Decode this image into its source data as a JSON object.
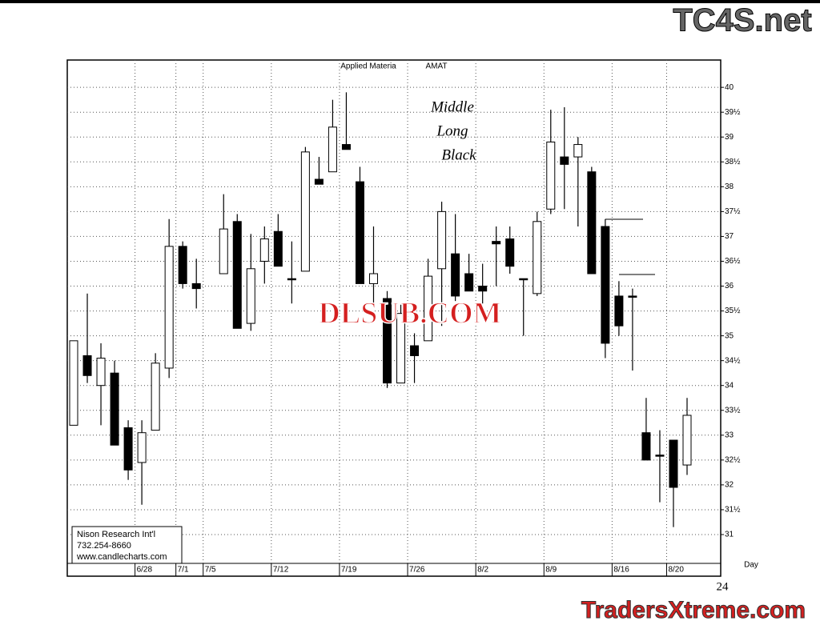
{
  "chart_data": {
    "type": "candlestick",
    "title": "Applied Materia",
    "subtitle": "AMAT",
    "x_label": "Day",
    "annotations": [
      "Middle",
      "Long",
      "Black"
    ],
    "categories": [
      null,
      null,
      null,
      null,
      null,
      "6/28",
      null,
      null,
      "7/1",
      null,
      "7/5",
      null,
      null,
      null,
      null,
      "7/12",
      null,
      null,
      null,
      null,
      "7/19",
      null,
      null,
      null,
      null,
      "7/26",
      null,
      null,
      null,
      null,
      "8/2",
      null,
      null,
      null,
      null,
      "8/9",
      null,
      null,
      null,
      null,
      "8/16",
      null,
      null,
      null,
      "8/20",
      null
    ],
    "open": [
      33.2,
      34.6,
      34.0,
      34.25,
      33.15,
      32.45,
      33.1,
      34.35,
      36.8,
      36.05,
      null,
      36.25,
      37.3,
      35.25,
      36.5,
      37.1,
      36.15,
      36.3,
      38.15,
      38.3,
      38.85,
      38.1,
      36.05,
      35.75,
      34.05,
      34.8,
      34.9,
      36.35,
      36.65,
      36.25,
      36.0,
      36.9,
      36.95,
      36.15,
      35.85,
      37.55,
      38.6,
      38.6,
      38.3,
      37.2,
      35.8,
      35.8,
      33.05,
      32.6,
      32.9,
      32.4
    ],
    "high": [
      34.9,
      35.85,
      34.85,
      34.5,
      33.3,
      33.3,
      34.65,
      37.35,
      36.9,
      36.55,
      null,
      37.85,
      37.45,
      37.05,
      37.2,
      37.45,
      36.9,
      38.8,
      38.6,
      39.75,
      39.9,
      38.4,
      37.2,
      35.9,
      35.65,
      35.05,
      36.55,
      37.7,
      37.45,
      36.65,
      36.45,
      37.2,
      37.2,
      36.15,
      37.5,
      39.55,
      39.6,
      39.0,
      38.4,
      37.35,
      36.1,
      35.95,
      33.75,
      33.1,
      32.9,
      33.75
    ],
    "low": [
      33.2,
      34.05,
      33.2,
      32.8,
      32.1,
      31.6,
      33.1,
      34.15,
      35.95,
      35.55,
      null,
      36.25,
      35.15,
      35.1,
      36.05,
      36.4,
      35.65,
      36.3,
      38.05,
      38.3,
      38.75,
      36.05,
      35.65,
      33.95,
      34.05,
      34.05,
      34.9,
      35.2,
      35.7,
      35.9,
      35.65,
      36.0,
      36.25,
      35.0,
      35.8,
      37.45,
      37.55,
      37.2,
      36.25,
      34.55,
      35.0,
      34.3,
      32.5,
      31.65,
      31.15,
      32.2
    ],
    "close": [
      34.9,
      34.2,
      34.55,
      32.8,
      32.3,
      33.05,
      34.45,
      36.8,
      36.05,
      35.95,
      null,
      37.15,
      35.15,
      36.35,
      36.95,
      36.4,
      36.15,
      38.7,
      38.05,
      39.2,
      38.75,
      36.05,
      36.25,
      34.05,
      35.45,
      34.6,
      36.2,
      37.5,
      35.8,
      35.9,
      35.9,
      36.85,
      36.4,
      36.15,
      37.3,
      38.9,
      38.45,
      38.85,
      36.25,
      34.85,
      35.2,
      35.8,
      32.5,
      32.6,
      31.95,
      33.4
    ],
    "up_color": "#ffffff",
    "down_color": "#000000",
    "ylim": [
      30.42,
      40.55
    ],
    "yticks": [
      31,
      {
        "value": 31.5,
        "label": "31½"
      },
      32,
      {
        "value": 32.5,
        "label": "32½"
      },
      33,
      {
        "value": 33.5,
        "label": "33½"
      },
      34,
      {
        "value": 34.5,
        "label": "34½"
      },
      35,
      {
        "value": 35.5,
        "label": "35½"
      },
      36,
      {
        "value": 36.5,
        "label": "36½"
      },
      37,
      {
        "value": 37.5,
        "label": "37½"
      },
      38,
      {
        "value": 38.5,
        "label": "38½"
      },
      39,
      {
        "value": 39.5,
        "label": "39½"
      },
      40
    ],
    "grid": true
  },
  "logo_box": {
    "lines": [
      "Nison Research Int'l",
      "732.254-8660",
      "www.candlecharts.com"
    ]
  },
  "page_number": "24",
  "watermarks": [
    "TC4S.net",
    "DLSUB.COM",
    "TradersXtreme.com"
  ]
}
